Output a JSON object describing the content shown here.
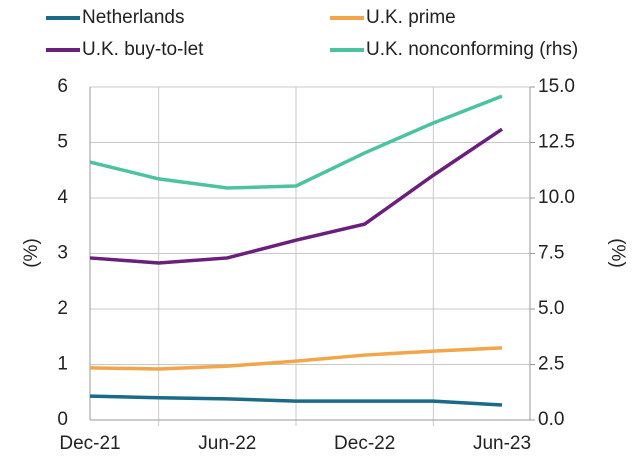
{
  "chart_data": {
    "type": "line",
    "categories": [
      "Dec-21",
      null,
      "Jun-22",
      null,
      "Dec-22",
      null,
      "Jun-23"
    ],
    "series": [
      {
        "name": "Netherlands",
        "color": "#1b6a8a",
        "values": [
          0.43,
          0.4,
          0.38,
          0.34,
          0.34,
          0.34,
          0.27
        ]
      },
      {
        "name": "U.K. prime",
        "color": "#f2a649",
        "values": [
          0.94,
          0.92,
          0.97,
          1.06,
          1.17,
          1.24,
          1.3
        ]
      },
      {
        "name": "U.K. buy-to-let",
        "color": "#6b1f7c",
        "values": [
          2.92,
          2.83,
          2.92,
          3.24,
          3.53,
          4.41,
          5.24
        ]
      },
      {
        "name": "U.K. nonconforming (rhs)",
        "color": "#4cc3a0",
        "axis": "y2",
        "values": [
          11.62,
          10.86,
          10.45,
          10.54,
          12.03,
          13.38,
          14.59
        ]
      }
    ],
    "ylabel": "(%)",
    "y2label": "(%)",
    "ylim": [
      0,
      6
    ],
    "yticks": [
      0,
      1,
      2,
      3,
      4,
      5,
      6
    ],
    "y2lim": [
      0,
      15
    ],
    "y2ticks": [
      {
        "value": 0,
        "label": "0.0"
      },
      {
        "value": 2.5,
        "label": "2.5"
      },
      {
        "value": 5,
        "label": "5.0"
      },
      {
        "value": 7.5,
        "label": "7.5"
      },
      {
        "value": 10,
        "label": "10.0"
      },
      {
        "value": 12.5,
        "label": "12.5"
      },
      {
        "value": 15,
        "label": "15.0"
      }
    ],
    "grid": true
  }
}
